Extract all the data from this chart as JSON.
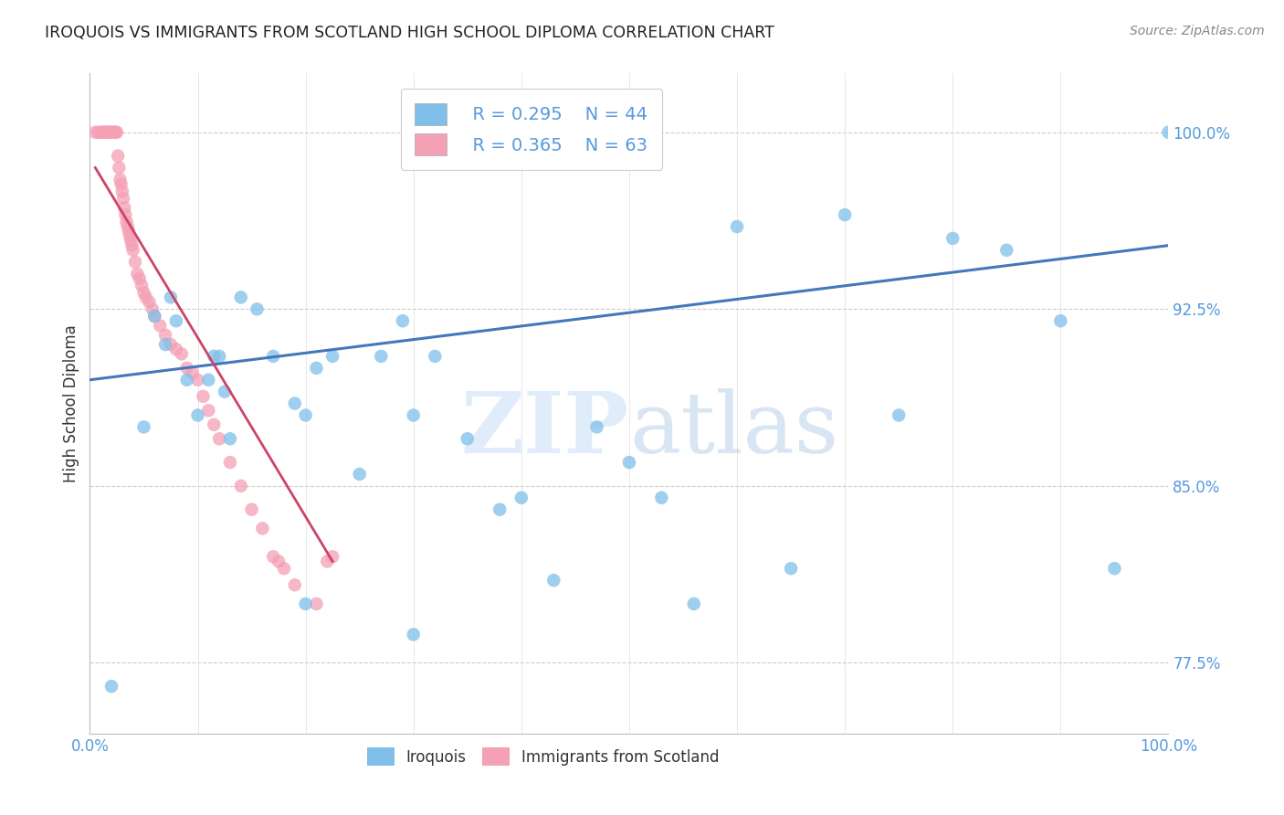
{
  "title": "IROQUOIS VS IMMIGRANTS FROM SCOTLAND HIGH SCHOOL DIPLOMA CORRELATION CHART",
  "source": "Source: ZipAtlas.com",
  "ylabel": "High School Diploma",
  "xlim": [
    0.0,
    1.0
  ],
  "ylim": [
    0.745,
    1.025
  ],
  "yticks": [
    0.775,
    0.85,
    0.925,
    1.0
  ],
  "ytick_labels": [
    "77.5%",
    "85.0%",
    "92.5%",
    "100.0%"
  ],
  "xticks": [
    0.0,
    1.0
  ],
  "xtick_labels": [
    "0.0%",
    "100.0%"
  ],
  "legend_iroquois_r": "R = 0.295",
  "legend_iroquois_n": "N = 44",
  "legend_scotland_r": "R = 0.365",
  "legend_scotland_n": "N = 63",
  "blue_color": "#7fbfea",
  "pink_color": "#f4a0b5",
  "blue_line_color": "#4477bb",
  "pink_line_color": "#cc4466",
  "axis_color": "#5599dd",
  "title_color": "#222222",
  "iroquois_x": [
    0.02,
    0.05,
    0.06,
    0.07,
    0.075,
    0.08,
    0.09,
    0.1,
    0.11,
    0.115,
    0.12,
    0.125,
    0.13,
    0.14,
    0.155,
    0.17,
    0.19,
    0.2,
    0.21,
    0.225,
    0.25,
    0.27,
    0.29,
    0.3,
    0.32,
    0.35,
    0.38,
    0.4,
    0.43,
    0.47,
    0.5,
    0.53,
    0.56,
    0.6,
    0.65,
    0.7,
    0.75,
    0.8,
    0.85,
    0.9,
    0.95,
    1.0,
    0.3,
    0.2
  ],
  "iroquois_y": [
    0.765,
    0.875,
    0.922,
    0.91,
    0.93,
    0.92,
    0.895,
    0.88,
    0.895,
    0.905,
    0.905,
    0.89,
    0.87,
    0.93,
    0.925,
    0.905,
    0.885,
    0.88,
    0.9,
    0.905,
    0.855,
    0.905,
    0.92,
    0.88,
    0.905,
    0.87,
    0.84,
    0.845,
    0.81,
    0.875,
    0.86,
    0.845,
    0.8,
    0.96,
    0.815,
    0.965,
    0.88,
    0.955,
    0.95,
    0.92,
    0.815,
    1.0,
    0.787,
    0.8
  ],
  "scotland_x": [
    0.005,
    0.008,
    0.01,
    0.012,
    0.013,
    0.015,
    0.016,
    0.017,
    0.018,
    0.019,
    0.02,
    0.021,
    0.022,
    0.023,
    0.024,
    0.025,
    0.026,
    0.027,
    0.028,
    0.029,
    0.03,
    0.031,
    0.032,
    0.033,
    0.034,
    0.035,
    0.036,
    0.037,
    0.038,
    0.039,
    0.04,
    0.042,
    0.044,
    0.046,
    0.048,
    0.05,
    0.052,
    0.055,
    0.058,
    0.06,
    0.065,
    0.07,
    0.075,
    0.08,
    0.085,
    0.09,
    0.095,
    0.1,
    0.105,
    0.11,
    0.115,
    0.12,
    0.13,
    0.14,
    0.15,
    0.16,
    0.17,
    0.175,
    0.18,
    0.19,
    0.21,
    0.22,
    0.225
  ],
  "scotland_y": [
    1.0,
    1.0,
    1.0,
    1.0,
    1.0,
    1.0,
    1.0,
    1.0,
    1.0,
    1.0,
    1.0,
    1.0,
    1.0,
    1.0,
    1.0,
    1.0,
    0.99,
    0.985,
    0.98,
    0.978,
    0.975,
    0.972,
    0.968,
    0.965,
    0.962,
    0.96,
    0.958,
    0.956,
    0.954,
    0.952,
    0.95,
    0.945,
    0.94,
    0.938,
    0.935,
    0.932,
    0.93,
    0.928,
    0.925,
    0.922,
    0.918,
    0.914,
    0.91,
    0.908,
    0.906,
    0.9,
    0.898,
    0.895,
    0.888,
    0.882,
    0.876,
    0.87,
    0.86,
    0.85,
    0.84,
    0.832,
    0.82,
    0.818,
    0.815,
    0.808,
    0.8,
    0.818,
    0.82
  ],
  "pink_line_x": [
    0.005,
    0.225
  ],
  "pink_line_y_start": 0.985,
  "pink_line_y_end": 0.818,
  "blue_line_x": [
    0.0,
    1.0
  ],
  "blue_line_y_start": 0.895,
  "blue_line_y_end": 0.952
}
